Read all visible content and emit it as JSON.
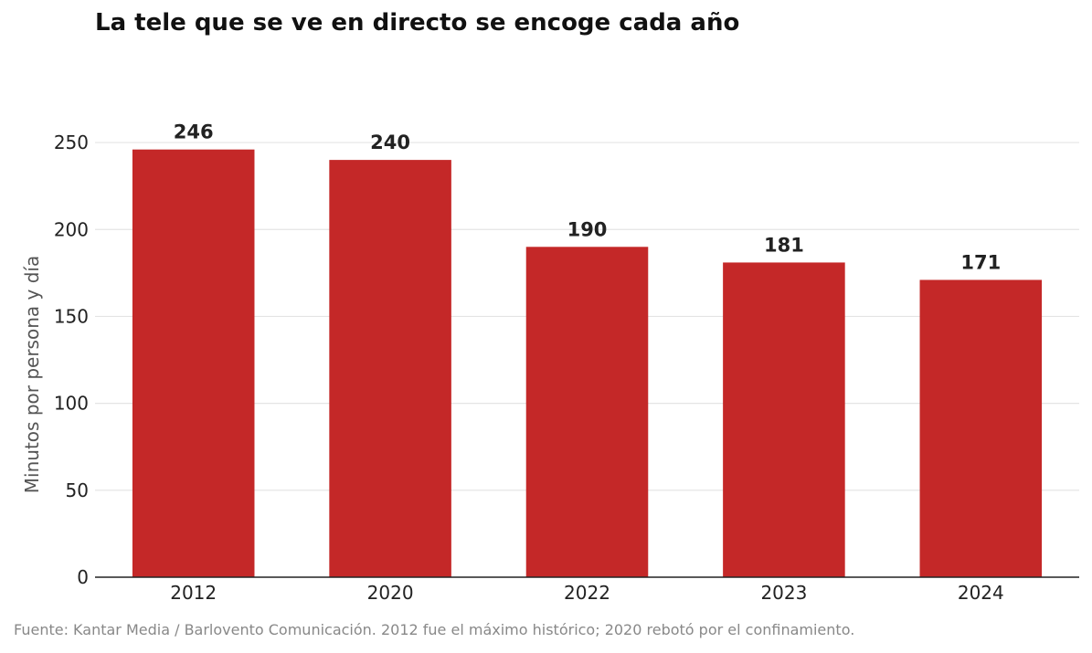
{
  "chart_data": {
    "type": "bar",
    "title": "La tele que se ve en directo se encoge cada año",
    "xlabel": "",
    "ylabel": "Minutos por persona y día",
    "categories": [
      "2012",
      "2020",
      "2022",
      "2023",
      "2024"
    ],
    "values": [
      246,
      240,
      190,
      181,
      171
    ],
    "ylim": [
      0,
      270
    ],
    "yticks": [
      0,
      50,
      100,
      150,
      200,
      250
    ],
    "grid": true,
    "legend": "none",
    "bar_color": "#c42828"
  },
  "source": "Fuente: Kantar Media / Barlovento Comunicación. 2012 fue el máximo histórico; 2020 rebotó por el confinamiento."
}
